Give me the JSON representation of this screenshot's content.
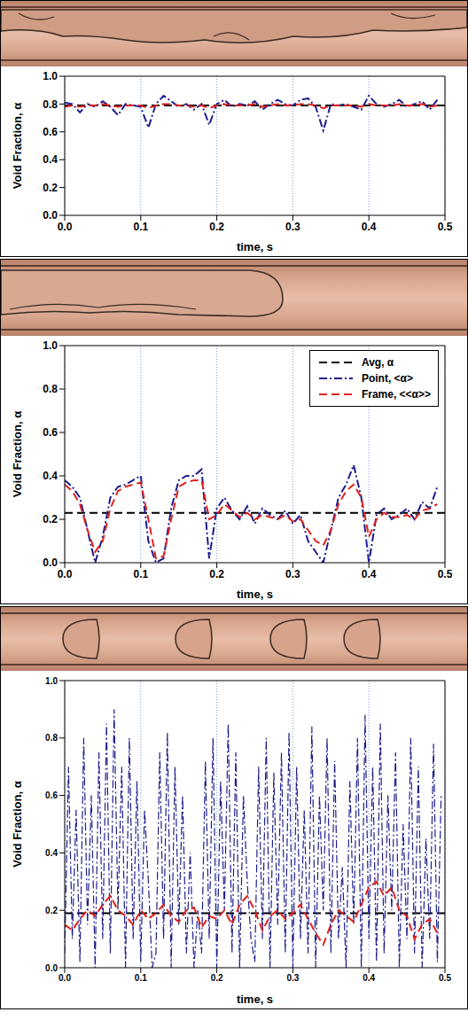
{
  "chart_data": [
    {
      "type": "line",
      "x_label": "time, s",
      "y_label": "Void Fraction, α",
      "xlim": [
        0,
        0.5
      ],
      "ylim": [
        0,
        1
      ],
      "grid": true,
      "xticks": [
        {
          "value": 0,
          "label": "0.0"
        },
        {
          "value": 0.1,
          "label": "0.1"
        },
        {
          "value": 0.2,
          "label": "0.2"
        },
        {
          "value": 0.3,
          "label": "0.3"
        },
        {
          "value": 0.4,
          "label": "0.4"
        },
        {
          "value": 0.5,
          "label": "0.5"
        }
      ],
      "yticks": [
        {
          "value": 0,
          "label": "0.0"
        },
        {
          "value": 0.2,
          "label": "0.2"
        },
        {
          "value": 0.4,
          "label": "0.4"
        },
        {
          "value": 0.6,
          "label": "0.6"
        },
        {
          "value": 0.8,
          "label": "0.8"
        },
        {
          "value": 1,
          "label": "1.0"
        }
      ],
      "series": [
        {
          "color": "#000000",
          "line_style": "dashed",
          "x": [
            0,
            0.5
          ],
          "values": [
            0.79,
            0.79
          ]
        },
        {
          "color": "#1c1c8c",
          "line_style": "dashdot",
          "x": [
            0,
            0.01,
            0.02,
            0.03,
            0.04,
            0.05,
            0.06,
            0.07,
            0.08,
            0.09,
            0.1,
            0.11,
            0.12,
            0.13,
            0.14,
            0.15,
            0.16,
            0.17,
            0.18,
            0.19,
            0.2,
            0.21,
            0.22,
            0.23,
            0.24,
            0.25,
            0.26,
            0.27,
            0.28,
            0.29,
            0.3,
            0.31,
            0.32,
            0.33,
            0.34,
            0.35,
            0.36,
            0.37,
            0.38,
            0.39,
            0.4,
            0.41,
            0.42,
            0.43,
            0.44,
            0.45,
            0.46,
            0.47,
            0.48,
            0.49
          ],
          "values": [
            0.81,
            0.8,
            0.74,
            0.8,
            0.78,
            0.82,
            0.78,
            0.72,
            0.8,
            0.79,
            0.78,
            0.63,
            0.8,
            0.86,
            0.82,
            0.78,
            0.8,
            0.76,
            0.8,
            0.65,
            0.8,
            0.83,
            0.78,
            0.8,
            0.79,
            0.82,
            0.76,
            0.8,
            0.83,
            0.8,
            0.79,
            0.83,
            0.84,
            0.78,
            0.61,
            0.8,
            0.79,
            0.8,
            0.78,
            0.76,
            0.86,
            0.8,
            0.78,
            0.8,
            0.83,
            0.78,
            0.8,
            0.82,
            0.76,
            0.83
          ]
        },
        {
          "color": "#e0201b",
          "line_style": "dashed",
          "x": [
            0,
            0.01,
            0.02,
            0.03,
            0.04,
            0.05,
            0.06,
            0.07,
            0.08,
            0.09,
            0.1,
            0.11,
            0.12,
            0.13,
            0.14,
            0.15,
            0.16,
            0.17,
            0.18,
            0.19,
            0.2,
            0.21,
            0.22,
            0.23,
            0.24,
            0.25,
            0.26,
            0.27,
            0.28,
            0.29,
            0.3,
            0.31,
            0.32,
            0.33,
            0.34,
            0.35,
            0.36,
            0.37,
            0.38,
            0.39,
            0.4,
            0.41,
            0.42,
            0.43,
            0.44,
            0.45,
            0.46,
            0.47,
            0.48,
            0.49
          ],
          "values": [
            0.78,
            0.79,
            0.78,
            0.79,
            0.79,
            0.8,
            0.79,
            0.78,
            0.79,
            0.79,
            0.79,
            0.77,
            0.79,
            0.8,
            0.8,
            0.79,
            0.79,
            0.78,
            0.79,
            0.77,
            0.79,
            0.8,
            0.79,
            0.79,
            0.79,
            0.8,
            0.78,
            0.79,
            0.8,
            0.79,
            0.79,
            0.8,
            0.8,
            0.79,
            0.77,
            0.79,
            0.79,
            0.79,
            0.79,
            0.78,
            0.8,
            0.79,
            0.79,
            0.79,
            0.8,
            0.79,
            0.79,
            0.8,
            0.78,
            0.79
          ]
        }
      ]
    },
    {
      "type": "line",
      "x_label": "time, s",
      "y_label": "Void Fraction, α",
      "xlim": [
        0,
        0.5
      ],
      "ylim": [
        0,
        1
      ],
      "grid": true,
      "legend": "upper right",
      "xticks": [
        {
          "value": 0,
          "label": "0.0"
        },
        {
          "value": 0.1,
          "label": "0.1"
        },
        {
          "value": 0.2,
          "label": "0.2"
        },
        {
          "value": 0.3,
          "label": "0.3"
        },
        {
          "value": 0.4,
          "label": "0.4"
        },
        {
          "value": 0.5,
          "label": "0.5"
        }
      ],
      "yticks": [
        {
          "value": 0,
          "label": "0.0"
        },
        {
          "value": 0.2,
          "label": "0.2"
        },
        {
          "value": 0.4,
          "label": "0.4"
        },
        {
          "value": 0.6,
          "label": "0.6"
        },
        {
          "value": 0.8,
          "label": "0.8"
        },
        {
          "value": 1,
          "label": "1.0"
        }
      ],
      "series": [
        {
          "name": "Avg, α",
          "color": "#000000",
          "line_style": "dashed",
          "x": [
            0,
            0.5
          ],
          "values": [
            0.23,
            0.23
          ]
        },
        {
          "name": "Point, <α>",
          "color": "#1c1c8c",
          "line_style": "dashdot",
          "x": [
            0,
            0.01,
            0.02,
            0.03,
            0.04,
            0.05,
            0.06,
            0.07,
            0.08,
            0.09,
            0.1,
            0.11,
            0.12,
            0.13,
            0.14,
            0.15,
            0.16,
            0.17,
            0.18,
            0.19,
            0.2,
            0.21,
            0.22,
            0.23,
            0.24,
            0.25,
            0.26,
            0.27,
            0.28,
            0.29,
            0.3,
            0.31,
            0.32,
            0.33,
            0.34,
            0.35,
            0.36,
            0.37,
            0.38,
            0.39,
            0.4,
            0.41,
            0.42,
            0.43,
            0.44,
            0.45,
            0.46,
            0.47,
            0.48,
            0.49
          ],
          "values": [
            0.38,
            0.35,
            0.3,
            0.15,
            0,
            0.12,
            0.3,
            0.35,
            0.36,
            0.38,
            0.4,
            0.1,
            0,
            0.02,
            0.25,
            0.38,
            0.4,
            0.4,
            0.43,
            0.02,
            0.25,
            0.3,
            0.24,
            0.2,
            0.26,
            0.18,
            0.25,
            0.22,
            0.2,
            0.24,
            0.18,
            0.22,
            0.1,
            0.05,
            0,
            0.15,
            0.3,
            0.36,
            0.45,
            0.3,
            0,
            0.22,
            0.25,
            0.2,
            0.22,
            0.25,
            0.2,
            0.28,
            0.25,
            0.35
          ]
        },
        {
          "name": "Frame, <<α>>",
          "color": "#e0201b",
          "line_style": "dashed",
          "x": [
            0,
            0.01,
            0.02,
            0.03,
            0.04,
            0.05,
            0.06,
            0.07,
            0.08,
            0.09,
            0.1,
            0.11,
            0.12,
            0.13,
            0.14,
            0.15,
            0.16,
            0.17,
            0.18,
            0.19,
            0.2,
            0.21,
            0.22,
            0.23,
            0.24,
            0.25,
            0.26,
            0.27,
            0.28,
            0.29,
            0.3,
            0.31,
            0.32,
            0.33,
            0.34,
            0.35,
            0.36,
            0.37,
            0.38,
            0.39,
            0.4,
            0.41,
            0.42,
            0.43,
            0.44,
            0.45,
            0.46,
            0.47,
            0.48,
            0.49
          ],
          "values": [
            0.36,
            0.33,
            0.27,
            0.15,
            0.05,
            0.1,
            0.25,
            0.33,
            0.35,
            0.36,
            0.37,
            0.2,
            0.02,
            0.03,
            0.2,
            0.35,
            0.37,
            0.38,
            0.38,
            0.2,
            0.22,
            0.27,
            0.24,
            0.21,
            0.23,
            0.2,
            0.22,
            0.21,
            0.2,
            0.22,
            0.19,
            0.2,
            0.15,
            0.1,
            0.08,
            0.15,
            0.27,
            0.33,
            0.36,
            0.3,
            0.12,
            0.2,
            0.23,
            0.21,
            0.21,
            0.22,
            0.2,
            0.24,
            0.25,
            0.27
          ]
        }
      ]
    },
    {
      "type": "line",
      "x_label": "time, s",
      "y_label": "Void Fraction, α",
      "xlim": [
        0,
        0.5
      ],
      "ylim": [
        0,
        1
      ],
      "grid": true,
      "xticks": [
        {
          "value": 0,
          "label": "0.0"
        },
        {
          "value": 0.1,
          "label": "0.1"
        },
        {
          "value": 0.2,
          "label": "0.2"
        },
        {
          "value": 0.3,
          "label": "0.3"
        },
        {
          "value": 0.4,
          "label": "0.4"
        },
        {
          "value": 0.5,
          "label": "0.5"
        }
      ],
      "yticks": [
        {
          "value": 0,
          "label": "0.0"
        },
        {
          "value": 0.2,
          "label": "0.2"
        },
        {
          "value": 0.4,
          "label": "0.4"
        },
        {
          "value": 0.6,
          "label": "0.6"
        },
        {
          "value": 0.8,
          "label": "0.8"
        },
        {
          "value": 1,
          "label": "1.0"
        }
      ],
      "series": [
        {
          "color": "#000000",
          "line_style": "dashed",
          "x": [
            0,
            0.5
          ],
          "values": [
            0.19,
            0.19
          ]
        },
        {
          "color": "#1c1c8c",
          "line_style": "dashdot",
          "x": [
            0,
            0.005,
            0.01,
            0.015,
            0.02,
            0.025,
            0.03,
            0.035,
            0.04,
            0.045,
            0.05,
            0.055,
            0.06,
            0.065,
            0.07,
            0.075,
            0.08,
            0.085,
            0.09,
            0.095,
            0.1,
            0.105,
            0.11,
            0.115,
            0.12,
            0.125,
            0.13,
            0.135,
            0.14,
            0.145,
            0.15,
            0.155,
            0.16,
            0.165,
            0.17,
            0.175,
            0.18,
            0.185,
            0.19,
            0.195,
            0.2,
            0.205,
            0.21,
            0.215,
            0.22,
            0.225,
            0.23,
            0.235,
            0.24,
            0.245,
            0.25,
            0.255,
            0.26,
            0.265,
            0.27,
            0.275,
            0.28,
            0.285,
            0.29,
            0.295,
            0.3,
            0.305,
            0.31,
            0.315,
            0.32,
            0.325,
            0.33,
            0.335,
            0.34,
            0.345,
            0.35,
            0.355,
            0.36,
            0.365,
            0.37,
            0.375,
            0.38,
            0.385,
            0.39,
            0.395,
            0.4,
            0.405,
            0.41,
            0.415,
            0.42,
            0.425,
            0.43,
            0.435,
            0.44,
            0.445,
            0.45,
            0.455,
            0.46,
            0.465,
            0.47,
            0.475,
            0.48,
            0.485,
            0.49,
            0.495
          ],
          "values": [
            0.05,
            0.7,
            0.1,
            0.55,
            0.02,
            0.8,
            0.15,
            0.6,
            0,
            0.75,
            0.1,
            0.85,
            0.05,
            0.9,
            0.2,
            0.7,
            0,
            0.8,
            0.1,
            0.65,
            0.02,
            0.55,
            0.3,
            0,
            0.05,
            0.75,
            0.1,
            0.82,
            0,
            0.7,
            0.15,
            0.6,
            0.05,
            0.4,
            0,
            0.2,
            0.05,
            0.72,
            0.1,
            0.8,
            0,
            0.65,
            0.2,
            0.85,
            0.05,
            0.75,
            0,
            0.6,
            0.3,
            0.1,
            0.02,
            0.7,
            0.1,
            0.8,
            0,
            0.68,
            0.15,
            0.75,
            0.05,
            0.82,
            0,
            0.7,
            0.1,
            0.55,
            0.05,
            0.84,
            0,
            0.6,
            0.2,
            0.8,
            0.05,
            0.72,
            0.1,
            0.35,
            0,
            0.65,
            0.15,
            0.8,
            0,
            0.88,
            0.1,
            0.7,
            0.02,
            0.85,
            0.05,
            0.6,
            0.2,
            0.75,
            0,
            0.5,
            0.1,
            0.8,
            0.05,
            0.7,
            0,
            0.45,
            0.1,
            0.78,
            0.02,
            0.6
          ]
        },
        {
          "color": "#e0201b",
          "line_style": "dashed",
          "x": [
            0,
            0.01,
            0.02,
            0.03,
            0.04,
            0.05,
            0.06,
            0.07,
            0.08,
            0.09,
            0.1,
            0.11,
            0.12,
            0.13,
            0.14,
            0.15,
            0.16,
            0.17,
            0.18,
            0.19,
            0.2,
            0.21,
            0.22,
            0.23,
            0.24,
            0.25,
            0.26,
            0.27,
            0.28,
            0.29,
            0.3,
            0.31,
            0.32,
            0.33,
            0.34,
            0.35,
            0.36,
            0.37,
            0.38,
            0.39,
            0.4,
            0.41,
            0.42,
            0.43,
            0.44,
            0.45,
            0.46,
            0.47,
            0.48,
            0.49
          ],
          "values": [
            0.15,
            0.13,
            0.17,
            0.2,
            0.18,
            0.22,
            0.25,
            0.2,
            0.18,
            0.15,
            0.2,
            0.17,
            0.19,
            0.22,
            0.18,
            0.16,
            0.2,
            0.21,
            0.14,
            0.18,
            0.17,
            0.2,
            0.15,
            0.22,
            0.25,
            0.2,
            0.13,
            0.18,
            0.2,
            0.17,
            0.19,
            0.22,
            0.17,
            0.12,
            0.08,
            0.15,
            0.2,
            0.18,
            0.16,
            0.22,
            0.28,
            0.3,
            0.25,
            0.28,
            0.2,
            0.18,
            0.1,
            0.15,
            0.17,
            0.12
          ]
        }
      ]
    }
  ]
}
